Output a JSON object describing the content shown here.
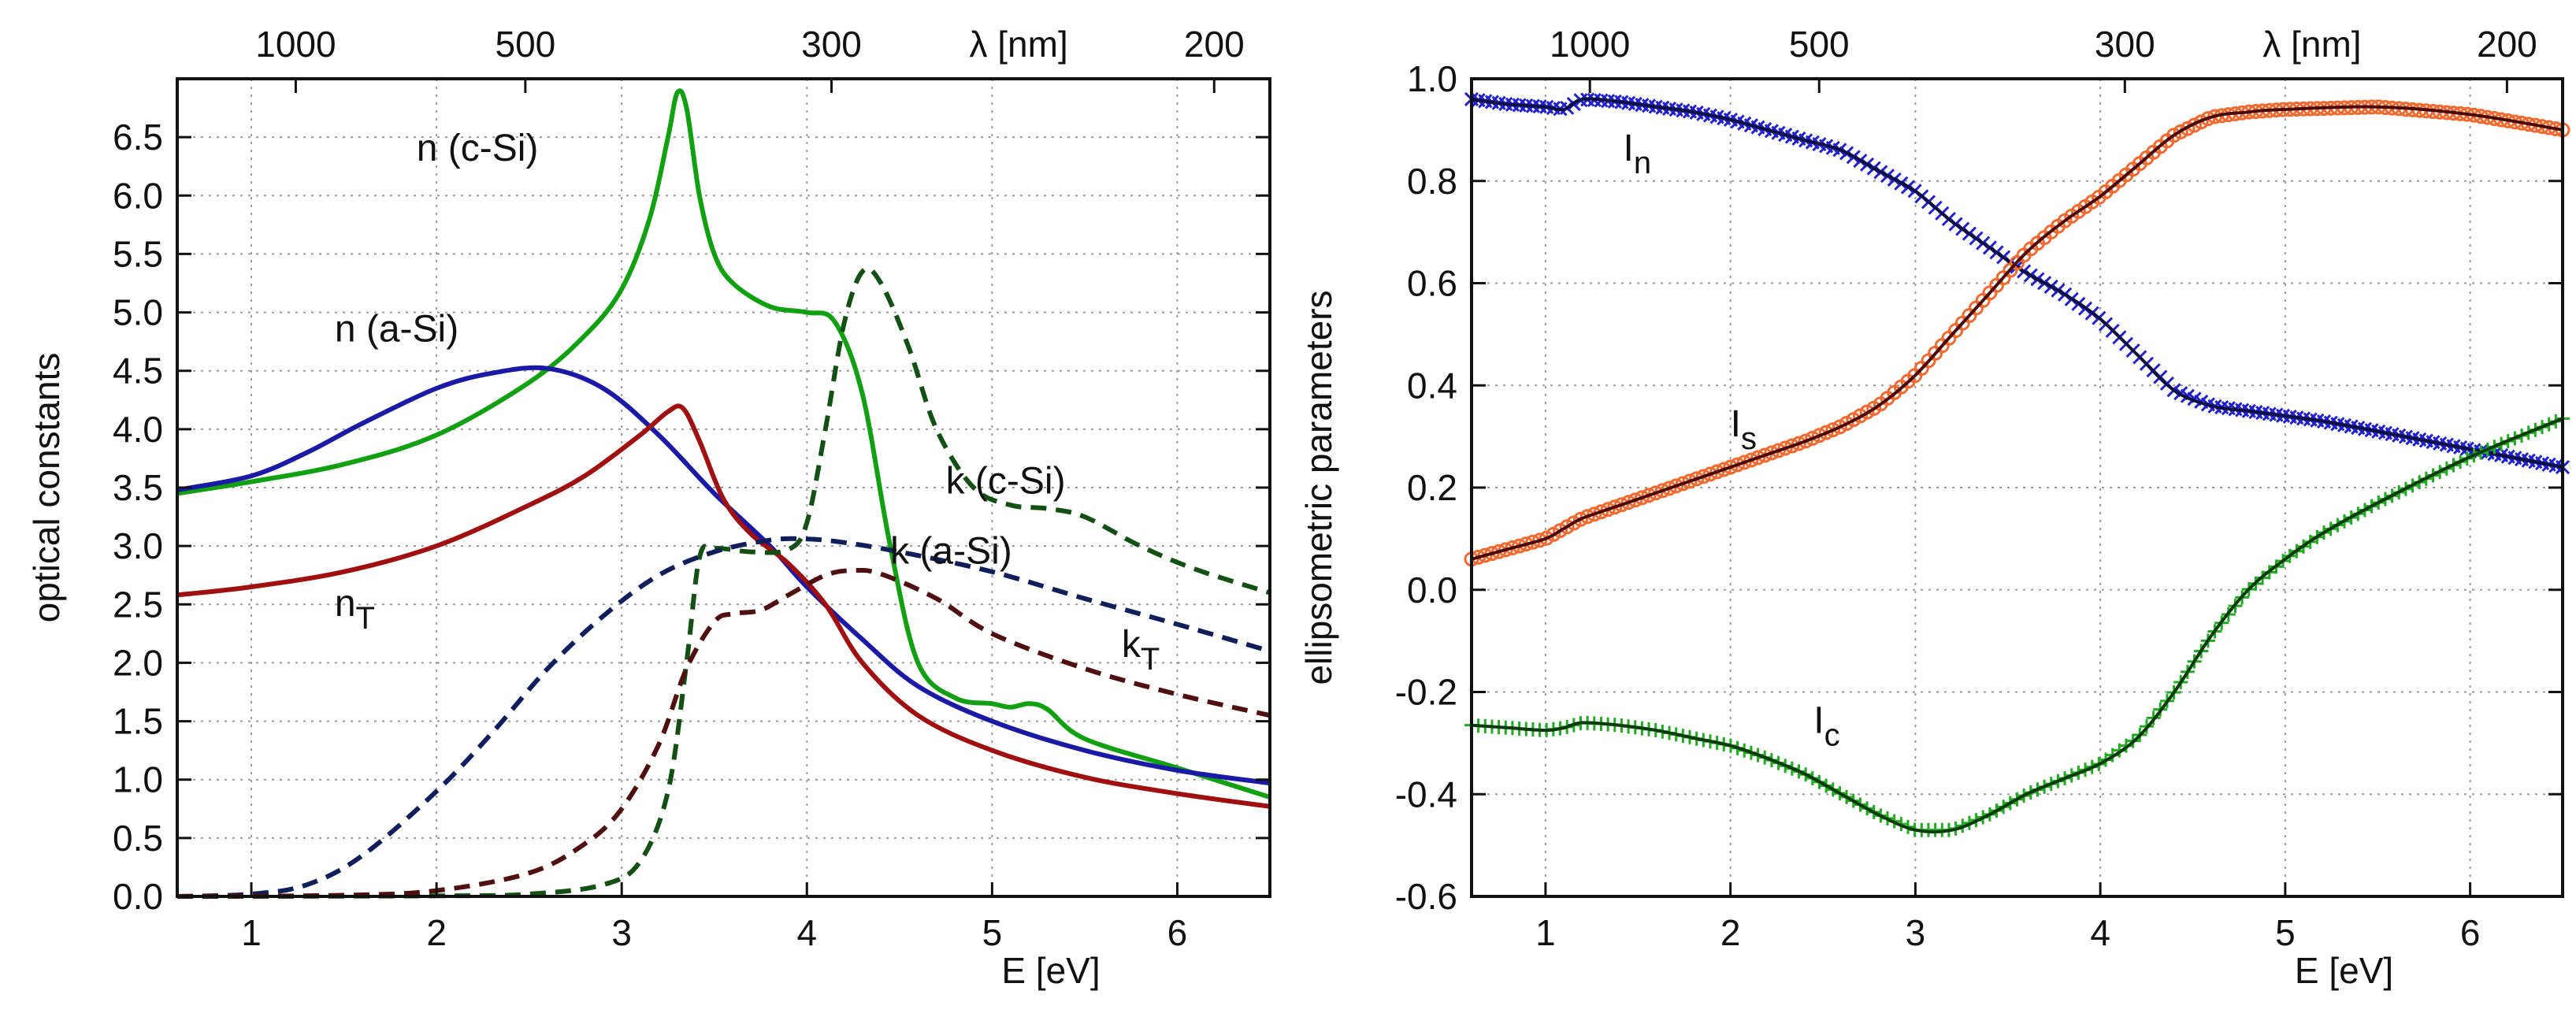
{
  "chart_data": [
    {
      "type": "line",
      "ylabel": "optical constants",
      "xlabel": "E [eV]",
      "top_axis_label": "λ [nm]",
      "top_ticks": [
        {
          "label": "1000",
          "nm": 1000
        },
        {
          "label": "500",
          "nm": 500
        },
        {
          "label": "300",
          "nm": 300
        },
        {
          "label": "200",
          "nm": 200
        }
      ],
      "xlim": [
        0.6,
        6.5
      ],
      "ylim": [
        0.0,
        7.0
      ],
      "xticks": [
        1,
        2,
        3,
        4,
        5,
        6
      ],
      "xtick_labels": [
        "1",
        "2",
        "3",
        "4",
        "5",
        "6"
      ],
      "yticks": [
        0.0,
        0.5,
        1.0,
        1.5,
        2.0,
        2.5,
        3.0,
        3.5,
        4.0,
        4.5,
        5.0,
        5.5,
        6.0,
        6.5
      ],
      "ytick_labels": [
        "0.0",
        "0.5",
        "1.0",
        "1.5",
        "2.0",
        "2.5",
        "3.0",
        "3.5",
        "4.0",
        "4.5",
        "5.0",
        "5.5",
        "6.0",
        "6.5"
      ],
      "grid": true,
      "series": [
        {
          "name": "n (c-Si)",
          "color": "#11a011",
          "dash": "solid",
          "x": [
            0.6,
            1.0,
            1.5,
            2.0,
            2.5,
            2.8,
            3.0,
            3.15,
            3.25,
            3.3,
            3.35,
            3.42,
            3.5,
            3.6,
            3.8,
            4.0,
            4.15,
            4.3,
            4.45,
            4.6,
            4.8,
            5.0,
            5.1,
            5.2,
            5.3,
            5.5,
            6.0,
            6.5
          ],
          "y": [
            3.45,
            3.55,
            3.7,
            3.95,
            4.4,
            4.8,
            5.2,
            5.8,
            6.5,
            6.88,
            6.75,
            6.0,
            5.5,
            5.25,
            5.05,
            5.0,
            4.92,
            4.3,
            3.0,
            2.0,
            1.7,
            1.65,
            1.62,
            1.65,
            1.6,
            1.35,
            1.1,
            0.85
          ]
        },
        {
          "name": "n (a-Si)",
          "color": "#1a1aa6",
          "dash": "solid",
          "x": [
            0.6,
            1.0,
            1.3,
            1.6,
            2.0,
            2.3,
            2.6,
            2.9,
            3.2,
            3.5,
            3.8,
            4.0,
            4.3,
            4.6,
            5.0,
            5.5,
            6.0,
            6.5
          ],
          "y": [
            3.48,
            3.6,
            3.8,
            4.05,
            4.35,
            4.48,
            4.52,
            4.35,
            3.95,
            3.45,
            3.0,
            2.65,
            2.2,
            1.8,
            1.5,
            1.25,
            1.08,
            0.97
          ]
        },
        {
          "name": "n_T",
          "color": "#a01010",
          "dash": "solid",
          "x": [
            0.6,
            1.0,
            1.5,
            2.0,
            2.5,
            2.8,
            3.1,
            3.25,
            3.33,
            3.42,
            3.55,
            3.7,
            3.9,
            4.1,
            4.3,
            4.6,
            5.0,
            5.5,
            6.0,
            6.5
          ],
          "y": [
            2.58,
            2.65,
            2.78,
            3.0,
            3.35,
            3.6,
            3.95,
            4.15,
            4.18,
            3.9,
            3.4,
            3.1,
            2.85,
            2.5,
            2.0,
            1.55,
            1.25,
            1.02,
            0.88,
            0.77
          ]
        },
        {
          "name": "k (c-Si)",
          "color": "#135013",
          "dash": "dashed",
          "x": [
            0.6,
            2.0,
            2.5,
            2.9,
            3.1,
            3.25,
            3.35,
            3.42,
            3.5,
            3.7,
            3.9,
            4.0,
            4.1,
            4.2,
            4.3,
            4.4,
            4.55,
            4.7,
            4.9,
            5.1,
            5.3,
            5.5,
            5.8,
            6.1,
            6.5
          ],
          "y": [
            0.0,
            0.005,
            0.02,
            0.1,
            0.3,
            0.9,
            2.0,
            2.9,
            2.98,
            2.95,
            2.97,
            3.2,
            4.0,
            4.9,
            5.35,
            5.25,
            4.7,
            4.0,
            3.5,
            3.35,
            3.32,
            3.25,
            3.0,
            2.8,
            2.6
          ]
        },
        {
          "name": "k (a-Si)",
          "color": "#101f5c",
          "dash": "dashed",
          "x": [
            0.6,
            1.0,
            1.3,
            1.6,
            2.0,
            2.3,
            2.6,
            2.9,
            3.2,
            3.5,
            3.8,
            4.0,
            4.2,
            4.5,
            5.0,
            5.5,
            6.0,
            6.5
          ],
          "y": [
            0.0,
            0.02,
            0.1,
            0.35,
            0.9,
            1.4,
            1.95,
            2.4,
            2.75,
            2.95,
            3.05,
            3.06,
            3.03,
            2.95,
            2.78,
            2.55,
            2.33,
            2.1
          ]
        },
        {
          "name": "k_T",
          "color": "#501010",
          "dash": "dashed",
          "x": [
            0.6,
            1.5,
            2.0,
            2.5,
            2.8,
            3.0,
            3.2,
            3.35,
            3.5,
            3.6,
            3.75,
            3.9,
            4.1,
            4.25,
            4.4,
            4.7,
            5.0,
            5.5,
            6.0,
            6.5
          ],
          "y": [
            0.0,
            0.01,
            0.05,
            0.2,
            0.45,
            0.75,
            1.3,
            1.95,
            2.35,
            2.42,
            2.45,
            2.58,
            2.75,
            2.79,
            2.76,
            2.55,
            2.25,
            1.95,
            1.73,
            1.55
          ]
        }
      ],
      "annotations": [
        {
          "text": "n (c-Si)",
          "x": 2.55,
          "y": 6.3,
          "anchor": "end"
        },
        {
          "text": "n (a-Si)",
          "x": 1.45,
          "y": 4.75,
          "anchor": "start"
        },
        {
          "text": "n",
          "sub": "T",
          "x": 1.45,
          "y": 2.4,
          "anchor": "start"
        },
        {
          "text": "k (c-Si)",
          "x": 4.75,
          "y": 3.45,
          "anchor": "start"
        },
        {
          "text": "k (a-Si)",
          "x": 4.45,
          "y": 2.85,
          "anchor": "start"
        },
        {
          "text": "k",
          "sub": "T",
          "x": 5.7,
          "y": 2.05,
          "anchor": "start"
        }
      ]
    },
    {
      "type": "line",
      "ylabel": "ellipsometric parameters",
      "xlabel": "E [eV]",
      "top_axis_label": "λ [nm]",
      "top_ticks": [
        {
          "label": "1000",
          "nm": 1000
        },
        {
          "label": "500",
          "nm": 500
        },
        {
          "label": "300",
          "nm": 300
        },
        {
          "label": "200",
          "nm": 200
        }
      ],
      "xlim": [
        0.6,
        6.5
      ],
      "ylim": [
        -0.6,
        1.0
      ],
      "xticks": [
        1,
        2,
        3,
        4,
        5,
        6
      ],
      "xtick_labels": [
        "1",
        "2",
        "3",
        "4",
        "5",
        "6"
      ],
      "yticks": [
        -0.6,
        -0.4,
        -0.2,
        0.0,
        0.2,
        0.4,
        0.6,
        0.8,
        1.0
      ],
      "ytick_labels": [
        "-0.6",
        "-0.4",
        "-0.2",
        "0.0",
        "0.2",
        "0.4",
        "0.6",
        "0.8",
        "1.0"
      ],
      "grid": true,
      "series": [
        {
          "name": "I_n",
          "color": "#2020d0",
          "marker": "x",
          "fit_color": "#101040",
          "x": [
            0.6,
            0.8,
            1.0,
            1.1,
            1.2,
            1.4,
            1.6,
            1.8,
            2.0,
            2.2,
            2.4,
            2.6,
            2.8,
            3.0,
            3.2,
            3.4,
            3.6,
            3.8,
            4.0,
            4.2,
            4.4,
            4.6,
            4.8,
            5.0,
            5.2,
            5.5,
            6.0,
            6.5
          ],
          "y": [
            0.96,
            0.95,
            0.945,
            0.94,
            0.96,
            0.955,
            0.945,
            0.935,
            0.92,
            0.9,
            0.88,
            0.86,
            0.82,
            0.78,
            0.72,
            0.67,
            0.62,
            0.58,
            0.53,
            0.46,
            0.39,
            0.36,
            0.35,
            0.34,
            0.33,
            0.31,
            0.275,
            0.24
          ]
        },
        {
          "name": "I_s",
          "color": "#f06a30",
          "marker": "o",
          "fit_color": "#4a0808",
          "x": [
            0.6,
            0.8,
            1.0,
            1.1,
            1.2,
            1.4,
            1.6,
            1.8,
            2.0,
            2.2,
            2.4,
            2.6,
            2.8,
            3.0,
            3.2,
            3.4,
            3.6,
            3.8,
            4.0,
            4.2,
            4.4,
            4.6,
            4.8,
            5.0,
            5.5,
            6.0,
            6.5
          ],
          "y": [
            0.06,
            0.08,
            0.1,
            0.12,
            0.14,
            0.165,
            0.19,
            0.215,
            0.24,
            0.265,
            0.29,
            0.32,
            0.36,
            0.42,
            0.5,
            0.58,
            0.66,
            0.72,
            0.77,
            0.83,
            0.89,
            0.925,
            0.935,
            0.94,
            0.945,
            0.93,
            0.9
          ]
        },
        {
          "name": "I_c",
          "color": "#22aa22",
          "marker": "+",
          "fit_color": "#0a3a0a",
          "x": [
            0.6,
            0.8,
            1.0,
            1.1,
            1.2,
            1.4,
            1.6,
            1.8,
            2.0,
            2.2,
            2.4,
            2.6,
            2.8,
            3.0,
            3.2,
            3.4,
            3.6,
            3.8,
            4.0,
            4.2,
            4.4,
            4.6,
            4.8,
            5.0,
            5.2,
            5.5,
            6.0,
            6.5
          ],
          "y": [
            -0.265,
            -0.27,
            -0.275,
            -0.27,
            -0.26,
            -0.265,
            -0.275,
            -0.29,
            -0.305,
            -0.33,
            -0.36,
            -0.4,
            -0.44,
            -0.47,
            -0.47,
            -0.44,
            -0.4,
            -0.37,
            -0.34,
            -0.29,
            -0.2,
            -0.09,
            0.0,
            0.06,
            0.11,
            0.17,
            0.26,
            0.335
          ]
        }
      ],
      "annotations": [
        {
          "text": "I",
          "sub": "n",
          "x": 1.42,
          "y": 0.84,
          "anchor": "start"
        },
        {
          "text": "I",
          "sub": "s",
          "x": 2.0,
          "y": 0.3,
          "anchor": "start"
        },
        {
          "text": "I",
          "sub": "c",
          "x": 2.45,
          "y": -0.28,
          "anchor": "start"
        }
      ]
    }
  ]
}
